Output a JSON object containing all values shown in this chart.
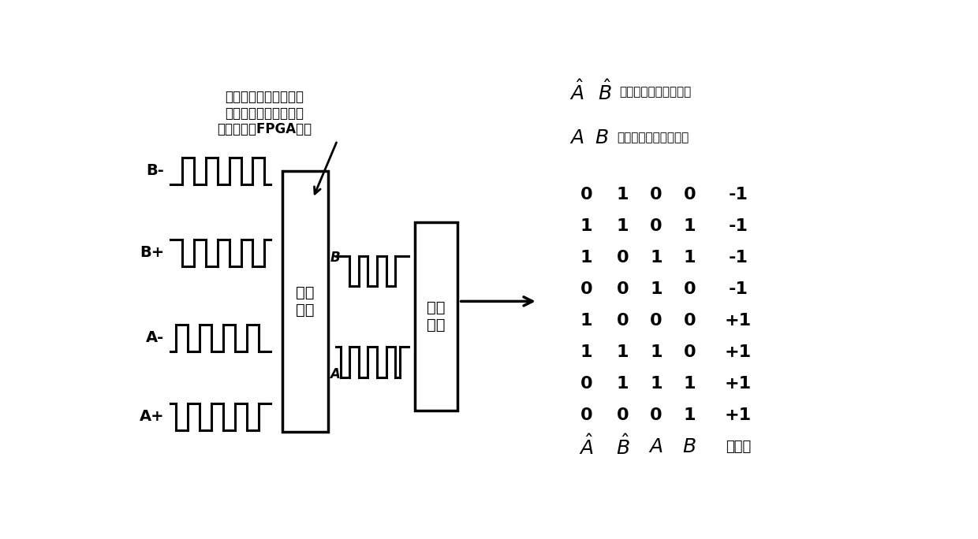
{
  "bg_color": "#ffffff",
  "signal_labels": [
    "A+",
    "A-",
    "B+",
    "B-"
  ],
  "ap_pattern": [
    0,
    1,
    1,
    0,
    0,
    1,
    1,
    0,
    0,
    1,
    1,
    0,
    0,
    1,
    1,
    0,
    0
  ],
  "am_pattern": [
    1,
    0,
    0,
    1,
    1,
    0,
    0,
    1,
    1,
    0,
    0,
    1,
    1,
    0,
    0,
    1,
    1
  ],
  "bp_pattern": [
    0,
    0,
    1,
    1,
    0,
    0,
    1,
    1,
    0,
    0,
    1,
    1,
    0,
    0,
    1,
    1,
    0
  ],
  "bm_pattern": [
    1,
    1,
    0,
    0,
    1,
    1,
    0,
    0,
    1,
    1,
    0,
    0,
    1,
    1,
    0,
    0,
    1
  ],
  "a_out_pattern": [
    0,
    1,
    1,
    0,
    0,
    1,
    1,
    0,
    0,
    1,
    1,
    0,
    0,
    1,
    0,
    0
  ],
  "b_out_pattern": [
    0,
    0,
    0,
    1,
    1,
    0,
    0,
    1,
    1,
    0,
    0,
    1,
    1,
    0,
    0,
    0
  ],
  "diff_box_label": "差分\n电路",
  "count_box_label": "码盘\n计数",
  "table_data": [
    [
      "0",
      "0",
      "0",
      "1",
      "+1"
    ],
    [
      "0",
      "1",
      "1",
      "1",
      "+1"
    ],
    [
      "1",
      "1",
      "1",
      "0",
      "+1"
    ],
    [
      "1",
      "0",
      "0",
      "0",
      "+1"
    ],
    [
      "0",
      "0",
      "1",
      "0",
      "-1"
    ],
    [
      "1",
      "0",
      "1",
      "1",
      "-1"
    ],
    [
      "1",
      "1",
      "0",
      "1",
      "-1"
    ],
    [
      "0",
      "1",
      "0",
      "0",
      "-1"
    ]
  ],
  "note1_cn": "当前时钟周期码盘信号",
  "note2_cn": "上一时钟周期码盘信号",
  "bottom_text": "为减少传输中的失真，\n四路码盘信号经过差分\n电路后进入FPGA计数"
}
